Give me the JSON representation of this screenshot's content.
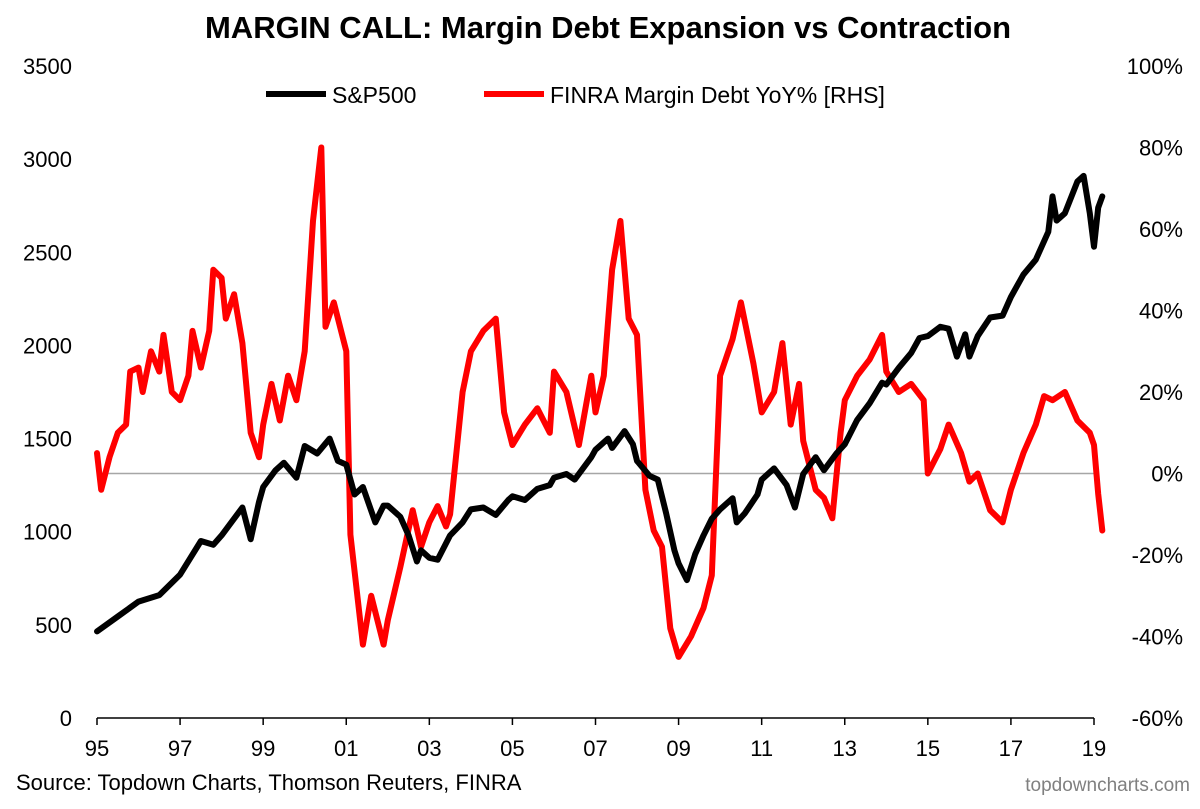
{
  "chart_data": {
    "type": "line",
    "title": "MARGIN CALL: Margin Debt Expansion vs Contraction",
    "source": "Source: Topdown Charts, Thomson Reuters, FINRA",
    "watermark": "topdowncharts.com",
    "legend_position": "top-center",
    "grid": false,
    "x_axis": {
      "range": [
        1995.0,
        2019.0
      ],
      "ticks": [
        1995,
        1997,
        1999,
        2001,
        2003,
        2005,
        2007,
        2009,
        2011,
        2013,
        2015,
        2017,
        2019
      ],
      "tick_labels": [
        "95",
        "97",
        "99",
        "01",
        "03",
        "05",
        "07",
        "09",
        "11",
        "13",
        "15",
        "17",
        "19"
      ]
    },
    "y_left": {
      "range": [
        0,
        3500
      ],
      "ticks": [
        0,
        500,
        1000,
        1500,
        2000,
        2500,
        3000,
        3500
      ],
      "tick_labels": [
        "0",
        "500",
        "1000",
        "1500",
        "2000",
        "2500",
        "3000",
        "3500"
      ]
    },
    "y_right": {
      "range": [
        -60,
        100
      ],
      "ticks": [
        -60,
        -40,
        -20,
        0,
        20,
        40,
        60,
        80,
        100
      ],
      "tick_labels": [
        "-60%",
        "-40%",
        "-20%",
        "0%",
        "20%",
        "40%",
        "60%",
        "80%",
        "100%"
      ],
      "reference_line": 0,
      "reference_color": "#a6a6a6"
    },
    "series": [
      {
        "name": "S&P500",
        "axis": "left",
        "color": "#000000",
        "points": [
          [
            1995.0,
            465
          ],
          [
            1995.5,
            545
          ],
          [
            1996.0,
            625
          ],
          [
            1996.5,
            660
          ],
          [
            1997.0,
            770
          ],
          [
            1997.5,
            950
          ],
          [
            1997.8,
            930
          ],
          [
            1998.0,
            980
          ],
          [
            1998.5,
            1130
          ],
          [
            1998.7,
            960
          ],
          [
            1998.9,
            1160
          ],
          [
            1999.0,
            1240
          ],
          [
            1999.3,
            1330
          ],
          [
            1999.5,
            1370
          ],
          [
            1999.8,
            1290
          ],
          [
            2000.0,
            1460
          ],
          [
            2000.3,
            1420
          ],
          [
            2000.6,
            1500
          ],
          [
            2000.8,
            1380
          ],
          [
            2001.0,
            1360
          ],
          [
            2001.2,
            1200
          ],
          [
            2001.4,
            1240
          ],
          [
            2001.7,
            1050
          ],
          [
            2001.9,
            1140
          ],
          [
            2002.0,
            1140
          ],
          [
            2002.3,
            1080
          ],
          [
            2002.5,
            980
          ],
          [
            2002.7,
            840
          ],
          [
            2002.8,
            900
          ],
          [
            2003.0,
            860
          ],
          [
            2003.2,
            850
          ],
          [
            2003.5,
            980
          ],
          [
            2003.8,
            1050
          ],
          [
            2004.0,
            1120
          ],
          [
            2004.3,
            1130
          ],
          [
            2004.6,
            1090
          ],
          [
            2004.9,
            1170
          ],
          [
            2005.0,
            1190
          ],
          [
            2005.3,
            1170
          ],
          [
            2005.6,
            1230
          ],
          [
            2005.9,
            1250
          ],
          [
            2006.0,
            1290
          ],
          [
            2006.3,
            1310
          ],
          [
            2006.5,
            1280
          ],
          [
            2006.9,
            1400
          ],
          [
            2007.0,
            1440
          ],
          [
            2007.3,
            1500
          ],
          [
            2007.4,
            1450
          ],
          [
            2007.7,
            1540
          ],
          [
            2007.9,
            1470
          ],
          [
            2008.0,
            1380
          ],
          [
            2008.3,
            1300
          ],
          [
            2008.5,
            1280
          ],
          [
            2008.7,
            1100
          ],
          [
            2008.9,
            900
          ],
          [
            2009.0,
            830
          ],
          [
            2009.2,
            740
          ],
          [
            2009.4,
            880
          ],
          [
            2009.6,
            980
          ],
          [
            2009.8,
            1070
          ],
          [
            2010.0,
            1120
          ],
          [
            2010.3,
            1180
          ],
          [
            2010.4,
            1050
          ],
          [
            2010.6,
            1100
          ],
          [
            2010.9,
            1200
          ],
          [
            2011.0,
            1280
          ],
          [
            2011.3,
            1340
          ],
          [
            2011.6,
            1250
          ],
          [
            2011.8,
            1130
          ],
          [
            2012.0,
            1310
          ],
          [
            2012.3,
            1400
          ],
          [
            2012.5,
            1330
          ],
          [
            2012.8,
            1420
          ],
          [
            2013.0,
            1470
          ],
          [
            2013.3,
            1600
          ],
          [
            2013.6,
            1690
          ],
          [
            2013.9,
            1800
          ],
          [
            2014.0,
            1790
          ],
          [
            2014.3,
            1880
          ],
          [
            2014.6,
            1960
          ],
          [
            2014.8,
            2040
          ],
          [
            2015.0,
            2050
          ],
          [
            2015.3,
            2100
          ],
          [
            2015.5,
            2090
          ],
          [
            2015.7,
            1940
          ],
          [
            2015.9,
            2060
          ],
          [
            2016.0,
            1940
          ],
          [
            2016.2,
            2050
          ],
          [
            2016.5,
            2150
          ],
          [
            2016.8,
            2160
          ],
          [
            2017.0,
            2260
          ],
          [
            2017.3,
            2380
          ],
          [
            2017.6,
            2460
          ],
          [
            2017.9,
            2610
          ],
          [
            2018.0,
            2800
          ],
          [
            2018.1,
            2670
          ],
          [
            2018.3,
            2710
          ],
          [
            2018.6,
            2880
          ],
          [
            2018.75,
            2910
          ],
          [
            2018.9,
            2710
          ],
          [
            2019.0,
            2530
          ],
          [
            2019.1,
            2740
          ],
          [
            2019.2,
            2800
          ]
        ]
      },
      {
        "name": "FINRA Margin Debt YoY% [RHS]",
        "axis": "right",
        "color": "#ff0000",
        "points": [
          [
            1995.0,
            5
          ],
          [
            1995.1,
            -4
          ],
          [
            1995.3,
            4
          ],
          [
            1995.5,
            10
          ],
          [
            1995.7,
            12
          ],
          [
            1995.8,
            25
          ],
          [
            1996.0,
            26
          ],
          [
            1996.1,
            20
          ],
          [
            1996.3,
            30
          ],
          [
            1996.5,
            25
          ],
          [
            1996.6,
            34
          ],
          [
            1996.8,
            20
          ],
          [
            1997.0,
            18
          ],
          [
            1997.2,
            24
          ],
          [
            1997.3,
            35
          ],
          [
            1997.5,
            26
          ],
          [
            1997.7,
            35
          ],
          [
            1997.8,
            50
          ],
          [
            1998.0,
            48
          ],
          [
            1998.1,
            38
          ],
          [
            1998.3,
            44
          ],
          [
            1998.5,
            32
          ],
          [
            1998.7,
            10
          ],
          [
            1998.9,
            4
          ],
          [
            1999.0,
            12
          ],
          [
            1999.2,
            22
          ],
          [
            1999.4,
            13
          ],
          [
            1999.6,
            24
          ],
          [
            1999.8,
            18
          ],
          [
            2000.0,
            30
          ],
          [
            2000.2,
            62
          ],
          [
            2000.4,
            80
          ],
          [
            2000.5,
            36
          ],
          [
            2000.7,
            42
          ],
          [
            2001.0,
            30
          ],
          [
            2001.1,
            -15
          ],
          [
            2001.4,
            -42
          ],
          [
            2001.6,
            -30
          ],
          [
            2001.9,
            -42
          ],
          [
            2002.0,
            -36
          ],
          [
            2002.3,
            -23
          ],
          [
            2002.6,
            -9
          ],
          [
            2002.8,
            -18
          ],
          [
            2003.0,
            -12
          ],
          [
            2003.2,
            -8
          ],
          [
            2003.4,
            -13
          ],
          [
            2003.5,
            -10
          ],
          [
            2003.8,
            20
          ],
          [
            2004.0,
            30
          ],
          [
            2004.3,
            35
          ],
          [
            2004.6,
            38
          ],
          [
            2004.8,
            15
          ],
          [
            2005.0,
            7
          ],
          [
            2005.3,
            12
          ],
          [
            2005.6,
            16
          ],
          [
            2005.9,
            10
          ],
          [
            2006.0,
            25
          ],
          [
            2006.3,
            20
          ],
          [
            2006.6,
            7
          ],
          [
            2006.9,
            24
          ],
          [
            2007.0,
            15
          ],
          [
            2007.2,
            24
          ],
          [
            2007.4,
            50
          ],
          [
            2007.6,
            62
          ],
          [
            2007.8,
            38
          ],
          [
            2008.0,
            34
          ],
          [
            2008.2,
            -4
          ],
          [
            2008.4,
            -14
          ],
          [
            2008.6,
            -18
          ],
          [
            2008.8,
            -38
          ],
          [
            2009.0,
            -45
          ],
          [
            2009.3,
            -40
          ],
          [
            2009.6,
            -33
          ],
          [
            2009.8,
            -25
          ],
          [
            2010.0,
            24
          ],
          [
            2010.3,
            33
          ],
          [
            2010.5,
            42
          ],
          [
            2010.8,
            27
          ],
          [
            2011.0,
            15
          ],
          [
            2011.3,
            20
          ],
          [
            2011.5,
            32
          ],
          [
            2011.7,
            12
          ],
          [
            2011.9,
            22
          ],
          [
            2012.0,
            8
          ],
          [
            2012.3,
            -4
          ],
          [
            2012.5,
            -6
          ],
          [
            2012.7,
            -11
          ],
          [
            2012.9,
            10
          ],
          [
            2013.0,
            18
          ],
          [
            2013.3,
            24
          ],
          [
            2013.6,
            28
          ],
          [
            2013.9,
            34
          ],
          [
            2014.0,
            25
          ],
          [
            2014.3,
            20
          ],
          [
            2014.6,
            22
          ],
          [
            2014.9,
            18
          ],
          [
            2015.0,
            0
          ],
          [
            2015.3,
            6
          ],
          [
            2015.5,
            12
          ],
          [
            2015.8,
            5
          ],
          [
            2016.0,
            -2
          ],
          [
            2016.2,
            0
          ],
          [
            2016.5,
            -9
          ],
          [
            2016.8,
            -12
          ],
          [
            2017.0,
            -4
          ],
          [
            2017.3,
            5
          ],
          [
            2017.6,
            12
          ],
          [
            2017.8,
            19
          ],
          [
            2018.0,
            18
          ],
          [
            2018.3,
            20
          ],
          [
            2018.6,
            13
          ],
          [
            2018.9,
            10
          ],
          [
            2019.0,
            7
          ],
          [
            2019.1,
            -5
          ],
          [
            2019.2,
            -14
          ]
        ]
      }
    ]
  }
}
